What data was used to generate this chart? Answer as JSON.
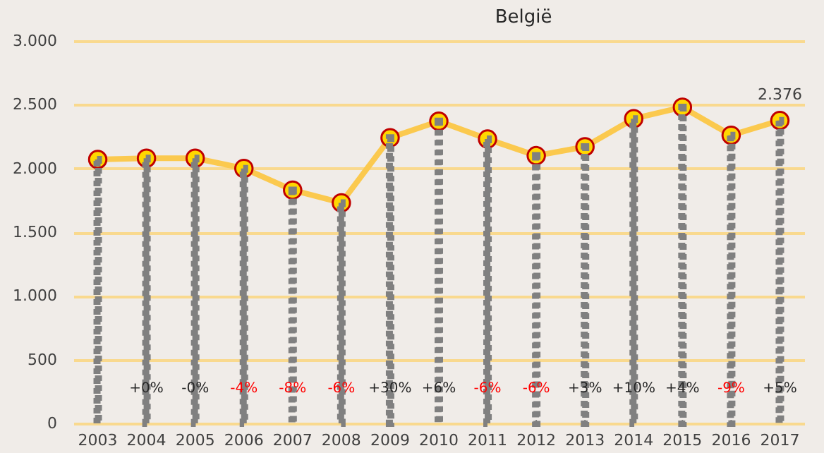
{
  "chart_data": {
    "type": "line",
    "title": "België",
    "categories": [
      "2003",
      "2004",
      "2005",
      "2006",
      "2007",
      "2008",
      "2009",
      "2010",
      "2011",
      "2012",
      "2013",
      "2014",
      "2015",
      "2016",
      "2017"
    ],
    "series": [
      {
        "color": "#fbc94e",
        "marker": "circle",
        "values": [
          2070,
          2080,
          2080,
          2000,
          1830,
          1730,
          2240,
          2370,
          2230,
          2100,
          2170,
          2390,
          2480,
          2260,
          2376
        ],
        "value_labels": [
          null,
          null,
          null,
          null,
          null,
          null,
          null,
          null,
          null,
          null,
          null,
          null,
          null,
          null,
          "2.376"
        ]
      },
      {
        "type": "bar",
        "color": "#808080",
        "line_style": "dashed",
        "values": [
          2070,
          2080,
          2080,
          2000,
          1830,
          1730,
          2240,
          2370,
          2230,
          2100,
          2170,
          2390,
          2480,
          2260,
          2376
        ]
      }
    ],
    "annotations": [
      "+0%",
      "-0%",
      "-4%",
      "-8%",
      "-6%",
      "+30%",
      "+6%",
      "-6%",
      "-6%",
      "+3%",
      "+10%",
      "+4%",
      "-9%",
      "+5%"
    ],
    "ylim": [
      0,
      3000
    ],
    "yticks": [
      0,
      {
        "value": 500,
        "label": "500"
      },
      {
        "value": 1000,
        "label": "1.000"
      },
      {
        "value": 1500,
        "label": "1.500"
      },
      {
        "value": 2000,
        "label": "2.000"
      },
      {
        "value": 2500,
        "label": "2.500"
      },
      {
        "value": 3000,
        "label": "3.000"
      }
    ],
    "grid": "y"
  }
}
